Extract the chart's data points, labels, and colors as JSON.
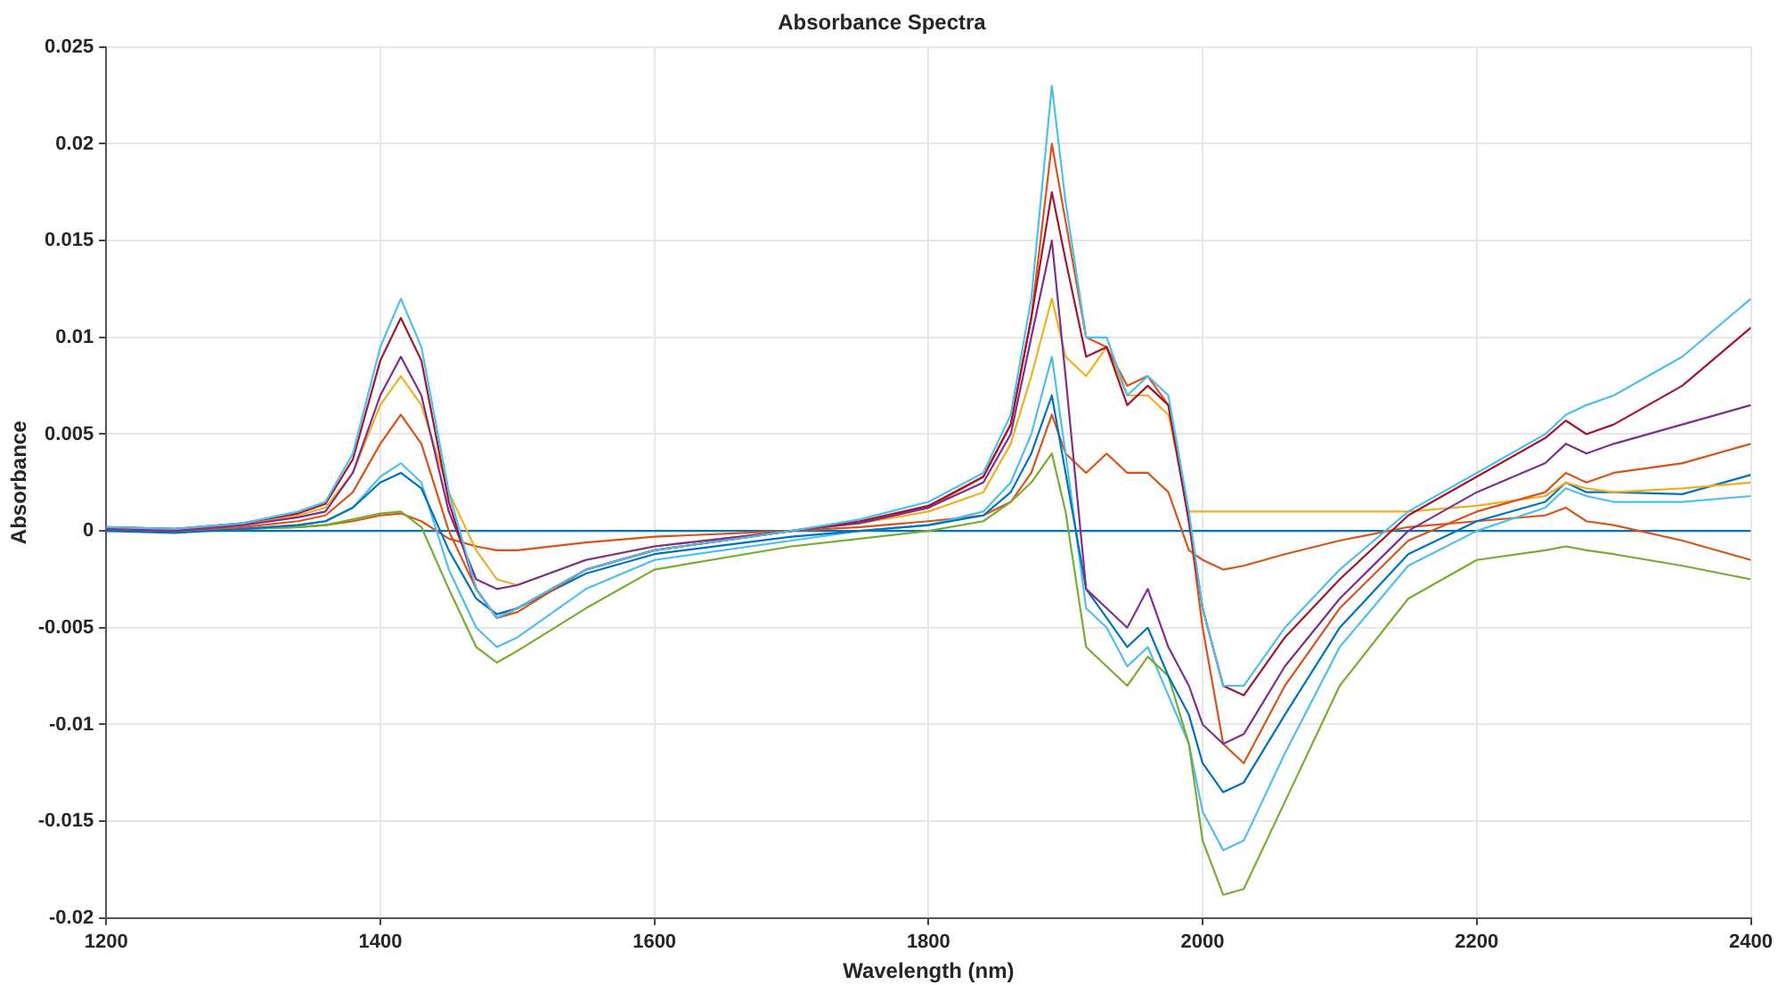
{
  "chart_data": {
    "type": "line",
    "title": "Absorbance Spectra",
    "xlabel": "Wavelength (nm)",
    "ylabel": "Absorbance",
    "x": [
      1200,
      1250,
      1300,
      1340,
      1360,
      1380,
      1400,
      1415,
      1430,
      1450,
      1470,
      1485,
      1500,
      1550,
      1600,
      1700,
      1750,
      1800,
      1840,
      1860,
      1875,
      1890,
      1900,
      1915,
      1930,
      1945,
      1960,
      1975,
      1990,
      2000,
      2015,
      2030,
      2060,
      2100,
      2150,
      2200,
      2250,
      2265,
      2280,
      2300,
      2350,
      2400
    ],
    "series": [
      {
        "color": "#4dbeee",
        "values": [
          0.0002,
          0.0001,
          0.0004,
          0.001,
          0.0015,
          0.004,
          0.0095,
          0.012,
          0.0095,
          0.002,
          -0.003,
          -0.0045,
          -0.004,
          -0.002,
          -0.001,
          0,
          0.0006,
          0.0015,
          0.003,
          0.006,
          0.012,
          0.023,
          0.017,
          0.01,
          0.01,
          0.007,
          0.008,
          0.007,
          0.001,
          -0.004,
          -0.008,
          -0.008,
          -0.005,
          -0.002,
          0.001,
          0.003,
          0.005,
          0.006,
          0.0065,
          0.007,
          0.009,
          0.012
        ]
      },
      {
        "color": "#a2142f",
        "values": [
          0.0002,
          0.0001,
          0.0004,
          0.0009,
          0.0014,
          0.0037,
          0.0088,
          0.011,
          0.0088,
          0.0015,
          -0.003,
          -0.0045,
          -0.004,
          -0.002,
          -0.001,
          0,
          0.0005,
          0.0013,
          0.0028,
          0.0055,
          0.011,
          0.0175,
          0.014,
          0.009,
          0.0095,
          0.0065,
          0.0075,
          0.0065,
          0.0005,
          -0.004,
          -0.008,
          -0.0085,
          -0.0055,
          -0.0025,
          0.0008,
          0.0028,
          0.0048,
          0.0057,
          0.005,
          0.0055,
          0.0075,
          0.0105
        ]
      },
      {
        "color": "#7e2f8e",
        "values": [
          0.0001,
          0,
          0.0003,
          0.0007,
          0.001,
          0.003,
          0.007,
          0.009,
          0.007,
          0.001,
          -0.0025,
          -0.003,
          -0.0028,
          -0.0015,
          -0.0008,
          0,
          0.0004,
          0.0012,
          0.0025,
          0.005,
          0.01,
          0.015,
          0.008,
          -0.003,
          -0.004,
          -0.005,
          -0.003,
          -0.006,
          -0.008,
          -0.01,
          -0.011,
          -0.0105,
          -0.007,
          -0.0035,
          0,
          0.002,
          0.0035,
          0.0045,
          0.004,
          0.0045,
          0.0055,
          0.0065
        ]
      },
      {
        "color": "#d95319",
        "values": [
          0.0001,
          0,
          0.0002,
          0.0005,
          0.0008,
          0.002,
          0.0045,
          0.006,
          0.0045,
          0,
          -0.003,
          -0.0045,
          -0.0042,
          -0.002,
          -0.001,
          0,
          0.0005,
          0.0012,
          0.0028,
          0.0055,
          0.011,
          0.02,
          0.016,
          0.01,
          0.0095,
          0.0075,
          0.008,
          0.0065,
          0.0005,
          -0.005,
          -0.011,
          -0.012,
          -0.008,
          -0.004,
          -0.0005,
          0.001,
          0.002,
          0.003,
          0.0025,
          0.003,
          0.0035,
          0.0045
        ]
      },
      {
        "color": "#edb120",
        "values": [
          0.0002,
          0.0001,
          0.0003,
          0.0008,
          0.0012,
          0.003,
          0.0065,
          0.008,
          0.0065,
          0.002,
          -0.001,
          -0.0025,
          -0.0028,
          -0.0015,
          -0.0008,
          0,
          0.0004,
          0.001,
          0.002,
          0.0045,
          0.008,
          0.012,
          0.009,
          0.008,
          0.0095,
          0.007,
          0.007,
          0.006,
          0.001,
          0.001,
          0.001,
          0.001,
          0.001,
          0.001,
          0.001,
          0.0013,
          0.0018,
          0.0025,
          0.0022,
          0.002,
          0.0022,
          0.0025
        ]
      },
      {
        "color": "#0072bd",
        "values": [
          0,
          -0.0001,
          0.0001,
          0.0003,
          0.0005,
          0.0012,
          0.0025,
          0.003,
          0.0022,
          -0.001,
          -0.0035,
          -0.0043,
          -0.004,
          -0.0022,
          -0.0012,
          -0.0003,
          0,
          0.0003,
          0.0008,
          0.002,
          0.004,
          0.007,
          0.003,
          -0.003,
          -0.0045,
          -0.006,
          -0.005,
          -0.0075,
          -0.0095,
          -0.012,
          -0.0135,
          -0.013,
          -0.0095,
          -0.005,
          -0.0012,
          0.0005,
          0.0015,
          0.0025,
          0.002,
          0.002,
          0.0019,
          0.0029
        ]
      },
      {
        "color": "#77ac30",
        "values": [
          0.0002,
          0,
          0.0001,
          0.0002,
          0.0003,
          0.0006,
          0.0009,
          0.001,
          0.0002,
          -0.003,
          -0.006,
          -0.0068,
          -0.0062,
          -0.004,
          -0.002,
          -0.0008,
          -0.0004,
          0,
          0.0005,
          0.0015,
          0.0025,
          0.004,
          0.001,
          -0.006,
          -0.007,
          -0.008,
          -0.0065,
          -0.0075,
          -0.011,
          -0.016,
          -0.0188,
          -0.0185,
          -0.014,
          -0.008,
          -0.0035,
          -0.0015,
          -0.001,
          -0.0008,
          -0.001,
          -0.0012,
          -0.0018,
          -0.0025
        ]
      },
      {
        "color": "#4dbeee",
        "values": [
          0.0001,
          0,
          0.0001,
          0.0003,
          0.0005,
          0.0012,
          0.0028,
          0.0035,
          0.0025,
          -0.002,
          -0.005,
          -0.006,
          -0.0055,
          -0.003,
          -0.0015,
          -0.0005,
          0,
          0.0003,
          0.001,
          0.0025,
          0.005,
          0.009,
          0.004,
          -0.004,
          -0.005,
          -0.007,
          -0.006,
          -0.0085,
          -0.011,
          -0.0145,
          -0.0165,
          -0.016,
          -0.0115,
          -0.006,
          -0.0018,
          0,
          0.0012,
          0.0022,
          0.0018,
          0.0015,
          0.0015,
          0.0018
        ]
      },
      {
        "color": "#d95319",
        "values": [
          0.0001,
          0,
          0.0001,
          0.0002,
          0.0003,
          0.0005,
          0.0008,
          0.0009,
          0.0005,
          -0.0004,
          -0.0008,
          -0.001,
          -0.001,
          -0.0006,
          -0.0003,
          0,
          0.0002,
          0.0005,
          0.0008,
          0.0015,
          0.003,
          0.006,
          0.004,
          0.003,
          0.004,
          0.003,
          0.003,
          0.002,
          -0.001,
          -0.0015,
          -0.002,
          -0.0018,
          -0.0012,
          -0.0005,
          0.0002,
          0.0005,
          0.0008,
          0.0012,
          0.0005,
          0.0003,
          -0.0005,
          -0.0015
        ]
      },
      {
        "color": "#0072bd",
        "values": [
          0,
          0,
          0,
          0,
          0,
          0,
          0,
          0,
          0,
          0,
          0,
          0,
          0,
          0,
          0,
          0,
          0,
          0,
          0,
          0,
          0,
          0,
          0,
          0,
          0,
          0,
          0,
          0,
          0,
          0,
          0,
          0,
          0,
          0,
          0,
          0,
          0,
          0,
          0,
          0,
          0,
          0
        ]
      }
    ],
    "xlim": [
      1200,
      2400
    ],
    "xticks": [
      1200,
      1400,
      1600,
      1800,
      2000,
      2200,
      2400
    ],
    "ylim": [
      -0.02,
      0.025
    ],
    "yticks": [
      -0.02,
      -0.015,
      -0.01,
      -0.005,
      0,
      0.005,
      0.01,
      0.015,
      0.02,
      0.025
    ],
    "grid": true,
    "marker": "none",
    "line_style": "solid"
  }
}
